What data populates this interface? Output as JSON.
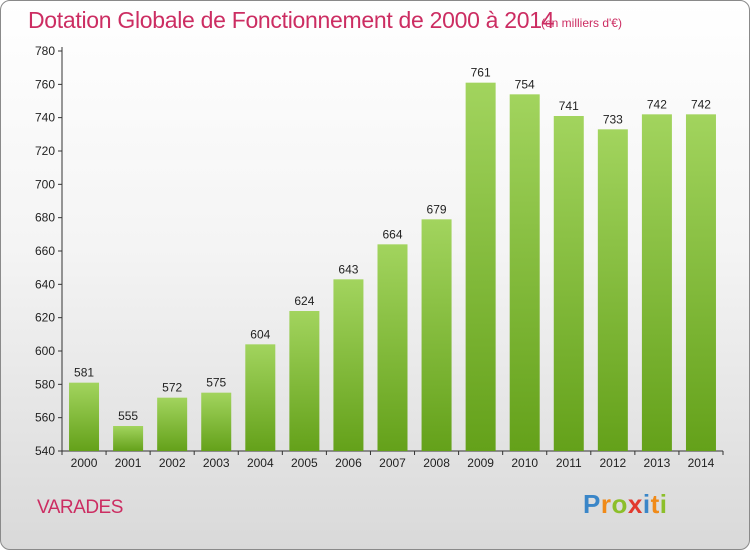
{
  "header": {
    "title": "Dotation Globale de Fonctionnement de 2000 à 2014",
    "unit": "(en milliers d'€)"
  },
  "footer": {
    "place": "VARADES",
    "brand": "Proxiti"
  },
  "colors": {
    "accent_text": "#cc2d62",
    "bar_light": "#a2d45e",
    "bar_dark": "#64a11a"
  },
  "chart_data": {
    "type": "bar",
    "categories": [
      "2000",
      "2001",
      "2002",
      "2003",
      "2004",
      "2005",
      "2006",
      "2007",
      "2008",
      "2009",
      "2010",
      "2011",
      "2012",
      "2013",
      "2014"
    ],
    "values": [
      581,
      555,
      572,
      575,
      604,
      624,
      643,
      664,
      679,
      761,
      754,
      741,
      733,
      742,
      742
    ],
    "yticks": [
      540,
      560,
      580,
      600,
      620,
      640,
      660,
      680,
      700,
      720,
      740,
      760,
      780
    ],
    "ylim": [
      540,
      780
    ],
    "grid": false,
    "legend": "none"
  }
}
